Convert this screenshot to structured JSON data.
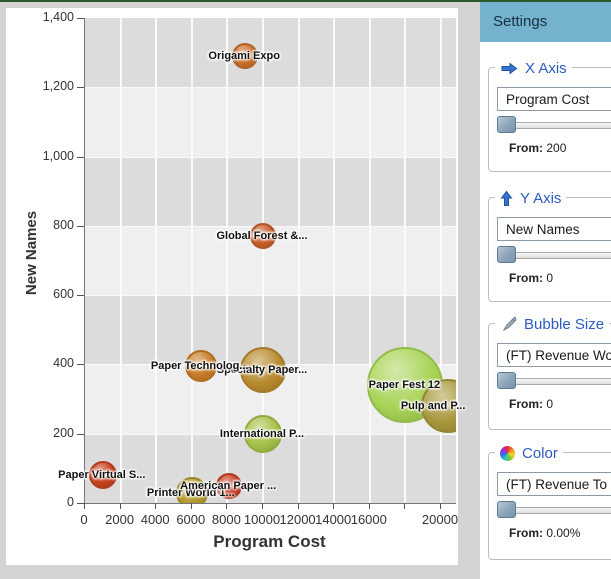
{
  "page": {
    "background": "#d4d4d4",
    "top_border_color": "#2b5a2b",
    "chart_background": "#ffffff"
  },
  "chart_data": {
    "type": "bubble",
    "title": "",
    "xlabel": "Program Cost",
    "ylabel": "New Names",
    "xlim": [
      0,
      20000
    ],
    "ylim": [
      0,
      1400
    ],
    "x_ticks": [
      0,
      2000,
      4000,
      6000,
      8000,
      10000,
      12000,
      14000,
      16000,
      18000,
      20000
    ],
    "x_tick_labels": [
      "0",
      "2000",
      "4000",
      "6000",
      "8000",
      "10000",
      "12000",
      "14000",
      "16000",
      "",
      "20000"
    ],
    "y_ticks": [
      0,
      200,
      400,
      600,
      800,
      1000,
      1200,
      1400
    ],
    "y_tick_labels": [
      "0",
      "200",
      "400",
      "600",
      "800",
      "1,000",
      "1,200",
      "1,400"
    ],
    "band_colors": [
      "#dcdcdc",
      "#efefef"
    ],
    "gridline_color": "#fafafa",
    "legend_position": "none",
    "points": [
      {
        "label": "Origami Expo",
        "x": 9000,
        "y": 1290,
        "r": 13,
        "color": "#c96f2b"
      },
      {
        "label": "Global Forest &...",
        "x": 10000,
        "y": 770,
        "r": 13,
        "color": "#c75f28"
      },
      {
        "label": "Specialty Paper...",
        "x": 10000,
        "y": 385,
        "r": 23,
        "color": "#b98b2f"
      },
      {
        "label": "Paper Technolog...",
        "x": 6500,
        "y": 395,
        "r": 16,
        "color": "#c87c28"
      },
      {
        "label": "Paper Fest 12",
        "x": 18000,
        "y": 340,
        "r": 38,
        "color": "#a8d355"
      },
      {
        "label": "Pulp and P...",
        "x": 20400,
        "y": 280,
        "r": 27,
        "color": "#a8973b",
        "label_dx": -14
      },
      {
        "label": "International P...",
        "x": 10000,
        "y": 200,
        "r": 19,
        "color": "#a6c148"
      },
      {
        "label": "Paper Virtual S...",
        "x": 1000,
        "y": 80,
        "r": 14,
        "color": "#c8421f"
      },
      {
        "label": "Printer World 1...",
        "x": 6000,
        "y": 30,
        "r": 16,
        "color": "#b49a2e"
      },
      {
        "label": "American Paper ...",
        "x": 8100,
        "y": 50,
        "r": 13,
        "color": "#ca3d22"
      }
    ]
  },
  "settings": {
    "title": "Settings",
    "header_bg": "#74b2cd",
    "legend_text_color": "#2b5cc4",
    "sections": [
      {
        "name": "x-axis",
        "legend": "X Axis",
        "icon": "x-axis-arrow-icon",
        "field_value": "Program Cost",
        "from_label": "From:",
        "from_value": "200",
        "slider_position": 0
      },
      {
        "name": "y-axis",
        "legend": "Y Axis",
        "icon": "y-axis-arrow-icon",
        "field_value": "New Names",
        "from_label": "From:",
        "from_value": "0",
        "slider_position": 0
      },
      {
        "name": "bubble-size",
        "legend": "Bubble Size",
        "icon": "bubble-size-pencil-icon",
        "field_value": "(FT) Revenue Wo",
        "from_label": "From:",
        "from_value": "0",
        "slider_position": 0
      },
      {
        "name": "color",
        "legend": "Color",
        "icon": "color-wheel-icon",
        "field_value": "(FT) Revenue To",
        "from_label": "From:",
        "from_value": "0.00%",
        "slider_position": 0
      }
    ]
  }
}
